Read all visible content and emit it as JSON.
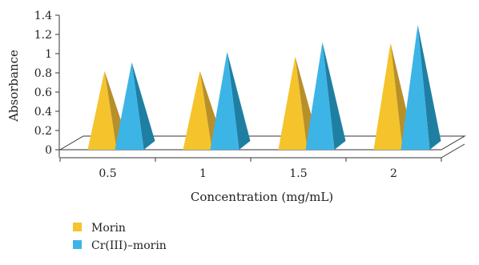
{
  "chart_data": {
    "type": "bar",
    "bar_shape": "pyramid-3d",
    "title": "",
    "xlabel": "Concentration (mg/mL)",
    "ylabel": "Absorbance",
    "categories": [
      "0.5",
      "1",
      "1.5",
      "2"
    ],
    "ylim": [
      0,
      1.4
    ],
    "yticks": [
      "0",
      "0.2",
      "0.4",
      "0.6",
      "0.8",
      "1",
      "1.2",
      "1.4"
    ],
    "grid": false,
    "legend_position": "bottom-left",
    "series": [
      {
        "name": "Morin",
        "values": [
          0.82,
          0.82,
          0.97,
          1.11
        ],
        "color": "#F5C32C",
        "shade": "#B8902A"
      },
      {
        "name": "Cr(III)–morin",
        "values": [
          0.91,
          1.02,
          1.12,
          1.3
        ],
        "color": "#3DB4E6",
        "shade": "#1F7FA3"
      }
    ]
  }
}
